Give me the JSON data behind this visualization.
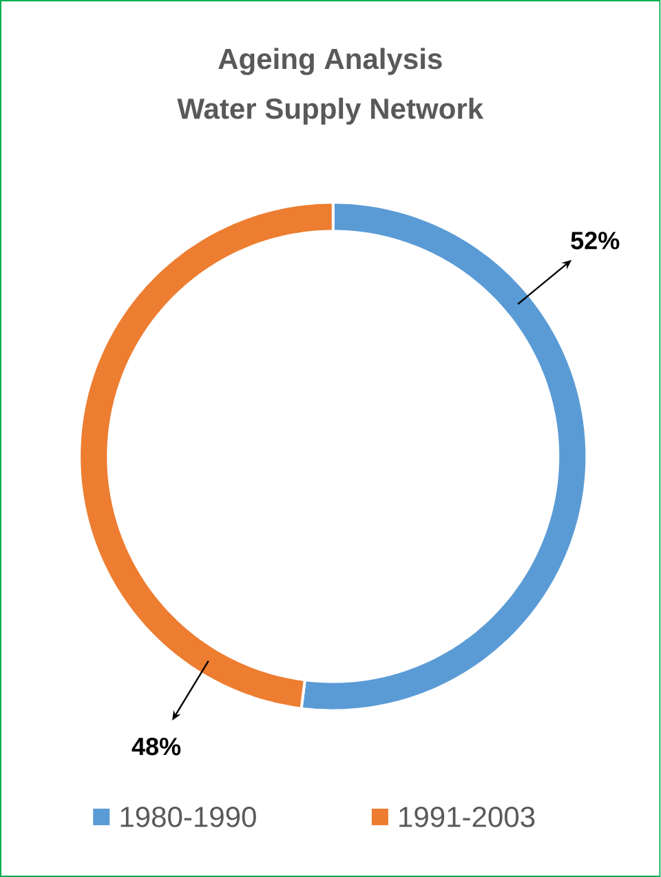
{
  "chart_data": {
    "type": "donut",
    "title": "Ageing Analysis",
    "subtitle": "Water Supply Network",
    "categories": [
      "1980-1990",
      "1991-2003"
    ],
    "values": [
      52,
      48
    ],
    "colors": [
      "#5b9bd5",
      "#ed7d31"
    ],
    "value_labels": [
      "52%",
      "48%"
    ],
    "legend": "bottom"
  }
}
